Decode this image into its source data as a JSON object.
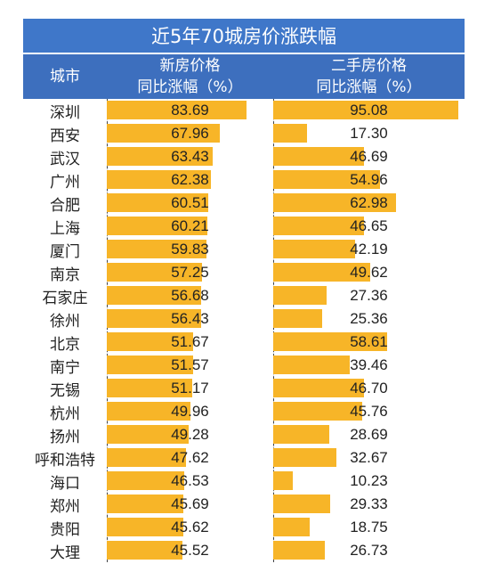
{
  "title": "近5年70城房价涨跌幅",
  "headers": {
    "city": "城市",
    "new_line1": "新房价格",
    "new_line2": "同比涨幅（%）",
    "second_line1": "二手房价格",
    "second_line2": "同比涨幅（%）"
  },
  "colors": {
    "title_bg": "#3f77c9",
    "header_bg": "#3d6fbe",
    "bar": "#f7b528"
  },
  "chart_data": {
    "type": "table",
    "columns": [
      "城市",
      "新房价格同比涨幅（%）",
      "二手房价格同比涨幅（%）"
    ],
    "rows": [
      {
        "city": "深圳",
        "new": "83.69",
        "second": "95.08"
      },
      {
        "city": "西安",
        "new": "67.96",
        "second": "17.30"
      },
      {
        "city": "武汉",
        "new": "63.43",
        "second": "46.69"
      },
      {
        "city": "广州",
        "new": "62.38",
        "second": "54.96"
      },
      {
        "city": "合肥",
        "new": "60.51",
        "second": "62.98"
      },
      {
        "city": "上海",
        "new": "60.21",
        "second": "46.65"
      },
      {
        "city": "厦门",
        "new": "59.83",
        "second": "42.19"
      },
      {
        "city": "南京",
        "new": "57.25",
        "second": "49.62"
      },
      {
        "city": "石家庄",
        "new": "56.68",
        "second": "27.36"
      },
      {
        "city": "徐州",
        "new": "56.43",
        "second": "25.36"
      },
      {
        "city": "北京",
        "new": "51.67",
        "second": "58.61"
      },
      {
        "city": "南宁",
        "new": "51.57",
        "second": "39.46"
      },
      {
        "city": "无锡",
        "new": "51.17",
        "second": "46.70"
      },
      {
        "city": "杭州",
        "new": "49.96",
        "second": "45.76"
      },
      {
        "city": "扬州",
        "new": "49.28",
        "second": "28.69"
      },
      {
        "city": "呼和浩特",
        "new": "47.62",
        "second": "32.67"
      },
      {
        "city": "海口",
        "new": "46.53",
        "second": "10.23"
      },
      {
        "city": "郑州",
        "new": "45.69",
        "second": "29.33"
      },
      {
        "city": "贵阳",
        "new": "45.62",
        "second": "18.75"
      },
      {
        "city": "大理",
        "new": "45.52",
        "second": "26.73"
      }
    ]
  }
}
